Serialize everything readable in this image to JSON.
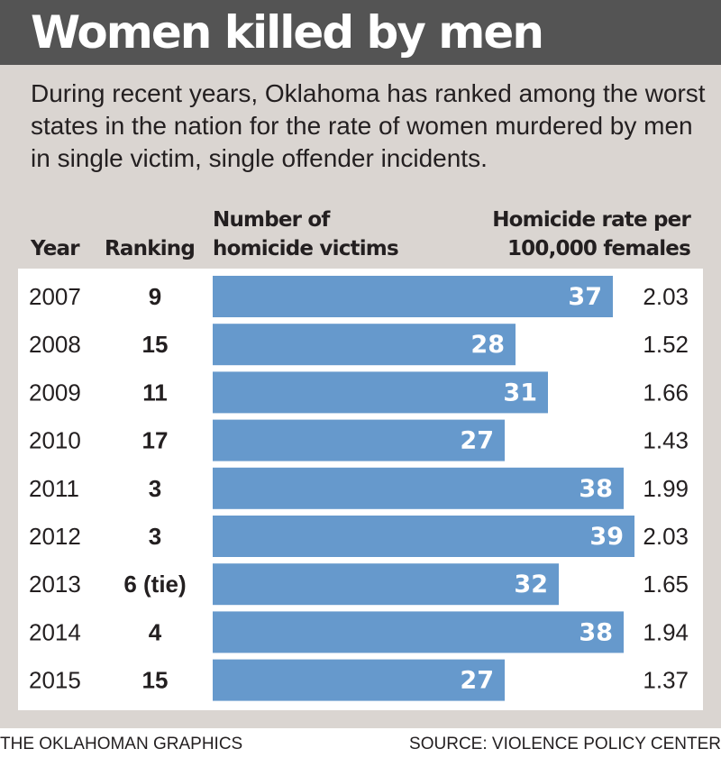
{
  "title": "Women killed by men",
  "intro": "During recent years, Oklahoma has ranked among the worst states in the nation for the rate of women murdered by men in single victim, single offender incidents.",
  "headers": {
    "year": "Year",
    "ranking": "Ranking",
    "victims_line1": "Number of",
    "victims_line2": "homicide victims",
    "rate_line1": "Homicide rate per",
    "rate_line2": "100,000 females"
  },
  "chart_data": {
    "type": "bar",
    "orientation": "horizontal",
    "categories": [
      "2007",
      "2008",
      "2009",
      "2010",
      "2011",
      "2012",
      "2013",
      "2014",
      "2015"
    ],
    "rankings": [
      "9",
      "15",
      "11",
      "17",
      "3",
      "3",
      "6 (tie)",
      "4",
      "15"
    ],
    "series": [
      {
        "name": "Number of homicide victims",
        "values": [
          37,
          28,
          31,
          27,
          38,
          39,
          32,
          38,
          27
        ]
      }
    ],
    "rates": [
      "2.03",
      "1.52",
      "1.66",
      "1.43",
      "1.99",
      "2.03",
      "1.65",
      "1.94",
      "1.37"
    ],
    "bar_color": "#6699cc",
    "xlim": [
      0,
      39
    ]
  },
  "footer": {
    "credit": "THE OKLAHOMAN GRAPHICS",
    "source": "SOURCE: VIOLENCE POLICY CENTER"
  }
}
